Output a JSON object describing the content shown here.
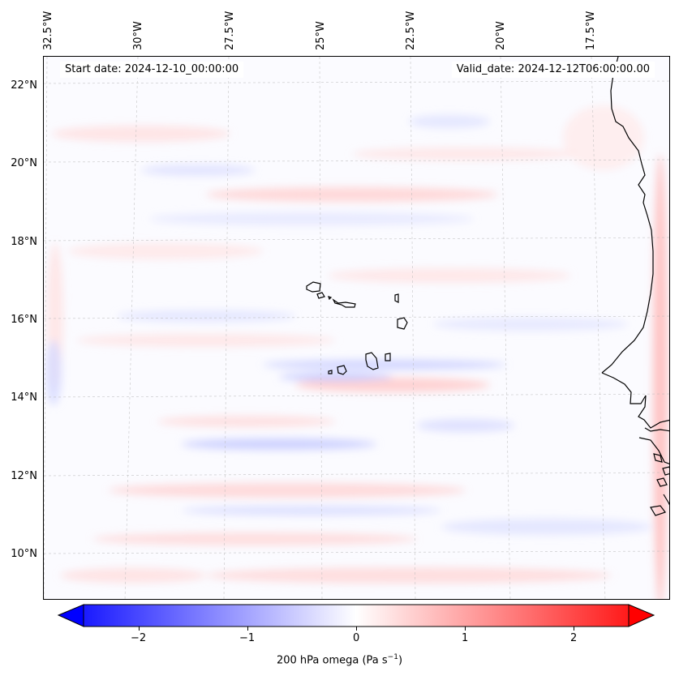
{
  "map": {
    "start_label": "Start date: 2024-12-10_00:00:00",
    "valid_label": "Valid_date: 2024-12-12T06:00:00.00",
    "longitude_labels": [
      "32.5°W",
      "30°W",
      "27.5°W",
      "25°W",
      "22.5°W",
      "20°W",
      "17.5°W"
    ],
    "latitude_labels": [
      "22°N",
      "20°N",
      "18°N",
      "16°N",
      "14°N",
      "12°N",
      "10°N"
    ],
    "colors": {
      "positive": "#ff0000",
      "negative": "#0000ff",
      "neutral": "#ffffff",
      "coast": "#000000",
      "grid": "#cccccc"
    }
  },
  "colorbar": {
    "tick_labels": [
      "−2",
      "−1",
      "0",
      "1",
      "2"
    ],
    "title_prefix": "200 hPa omega (Pa s",
    "title_sup": "−1",
    "title_suffix": ")"
  }
}
